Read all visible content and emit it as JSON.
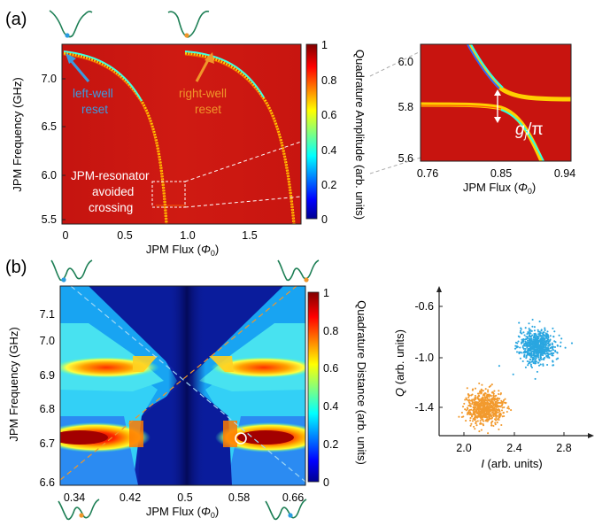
{
  "panel_a": {
    "letter": "(a)",
    "ylabel": "JPM Frequency (GHz)",
    "xlabel_text": "JPM Flux (",
    "xlabel_sym": "Φ",
    "xlabel_sub": "0",
    "xlabel_close": ")",
    "yticks": [
      "7.0",
      "6.5",
      "6.0",
      "5.5"
    ],
    "xticks": [
      "0",
      "0.5",
      "1.0",
      "1.5"
    ],
    "colorbar_label": "Quadrature Amplitude (arb. units)",
    "colorbar_ticks": [
      "1",
      "0.8",
      "0.6",
      "0.4",
      "0.2",
      "0"
    ],
    "annot_left_1": "left-well",
    "annot_left_2": "reset",
    "annot_right_1": "right-well",
    "annot_right_2": "reset",
    "annot_cross_1": "JPM-resonator",
    "annot_cross_2": "avoided",
    "annot_cross_3": "crossing",
    "left_color": "#3b9be0",
    "right_color": "#f0962a"
  },
  "inset_a": {
    "yticks": [
      "6.0",
      "5.8",
      "5.6"
    ],
    "xticks": [
      "0.76",
      "0.85",
      "0.94"
    ],
    "xlabel_text": "JPM Flux (",
    "xlabel_sym": "Φ",
    "xlabel_sub": "0",
    "xlabel_close": ")",
    "coupling_g": "g",
    "coupling_sub": "j",
    "coupling_rest": "/π"
  },
  "panel_b": {
    "letter": "(b)",
    "ylabel": "JPM Frequency (GHz)",
    "xlabel_text": "JPM Flux (",
    "xlabel_sym": "Φ",
    "xlabel_sub": "0",
    "xlabel_close": ")",
    "yticks": [
      "7.1",
      "7.0",
      "6.9",
      "6.8",
      "6.7",
      "6.6"
    ],
    "xticks": [
      "0.34",
      "0.42",
      "0.5",
      "0.58",
      "0.66"
    ],
    "colorbar_label": "Quadrature Distance (arb. units)",
    "colorbar_ticks": [
      "1",
      "0.8",
      "0.6",
      "0.4",
      "0.2",
      "0"
    ]
  },
  "scatter_b": {
    "ylabel_sym": "Q",
    "ylabel_rest": " (arb. units)",
    "xlabel_sym": "I",
    "xlabel_rest": " (arb. units)",
    "yticks": [
      "-0.6",
      "-1.0",
      "-1.4"
    ],
    "xticks": [
      "2.0",
      "2.4",
      "2.8"
    ],
    "blue_color": "#2aa6e0",
    "orange_color": "#f29a2e"
  },
  "chart_data": [
    {
      "type": "heatmap",
      "panel": "(a)",
      "xlabel": "JPM Flux (Φ0)",
      "ylabel": "JPM Frequency (GHz)",
      "xlim": [
        0,
        1.9
      ],
      "ylim": [
        5.5,
        7.35
      ],
      "colorbar": "Quadrature Amplitude (arb. units)",
      "colorbar_range": [
        0,
        1
      ],
      "features": [
        "left-well reset",
        "right-well reset",
        "JPM-resonator avoided crossing"
      ]
    },
    {
      "type": "heatmap",
      "panel": "(a) inset",
      "xlabel": "JPM Flux (Φ0)",
      "xlim": [
        0.76,
        0.94
      ],
      "ylim": [
        5.6,
        6.05
      ],
      "resonator_frequency_GHz": 5.8
    },
    {
      "type": "heatmap",
      "panel": "(b)",
      "xlabel": "JPM Flux (Φ0)",
      "ylabel": "JPM Frequency (GHz)",
      "xlim": [
        0.32,
        0.68
      ],
      "ylim": [
        6.6,
        7.15
      ],
      "colorbar": "Quadrature Distance (arb. units)",
      "colorbar_range": [
        0,
        1
      ]
    },
    {
      "type": "scatter",
      "panel": "(b) IQ",
      "xlabel": "I (arb. units)",
      "ylabel": "Q (arb. units)",
      "xlim": [
        1.85,
        3.0
      ],
      "ylim": [
        -1.65,
        -0.35
      ],
      "series": [
        {
          "color": "#2aa6e0",
          "center": [
            2.6,
            -0.85
          ],
          "spread": 0.08
        },
        {
          "color": "#f29a2e",
          "center": [
            2.2,
            -1.4
          ],
          "spread": 0.08
        }
      ]
    }
  ]
}
